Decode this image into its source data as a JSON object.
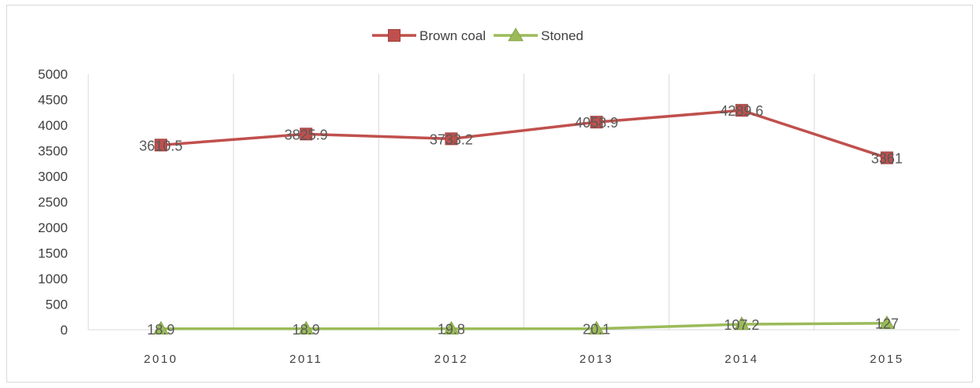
{
  "chart_data": {
    "type": "line",
    "title": "",
    "xlabel": "",
    "ylabel": "",
    "categories": [
      "2010",
      "2011",
      "2012",
      "2013",
      "2014",
      "2015"
    ],
    "ylim": [
      0,
      5000
    ],
    "yticks": [
      "0",
      "500",
      "1000",
      "1500",
      "2000",
      "2500",
      "3000",
      "3500",
      "4000",
      "4500",
      "5000"
    ],
    "grid": "vertical",
    "legend_position": "top-center",
    "series": [
      {
        "name": "Brown coal",
        "values": [
          3610.5,
          3825.9,
          3733.2,
          4058.9,
          4289.6,
          3361
        ],
        "labels": [
          "3610.5",
          "3825.9",
          "3733.2",
          "4058.9",
          "4289.6",
          "3361"
        ],
        "color": "#c0504d",
        "marker": "square"
      },
      {
        "name": "Stoned",
        "values": [
          18.9,
          18.9,
          19.8,
          20.1,
          107.2,
          127
        ],
        "labels": [
          "18.9",
          "18.9",
          "19.8",
          "20.1",
          "107.2",
          "127"
        ],
        "color": "#9bbb59",
        "marker": "triangle"
      }
    ]
  }
}
